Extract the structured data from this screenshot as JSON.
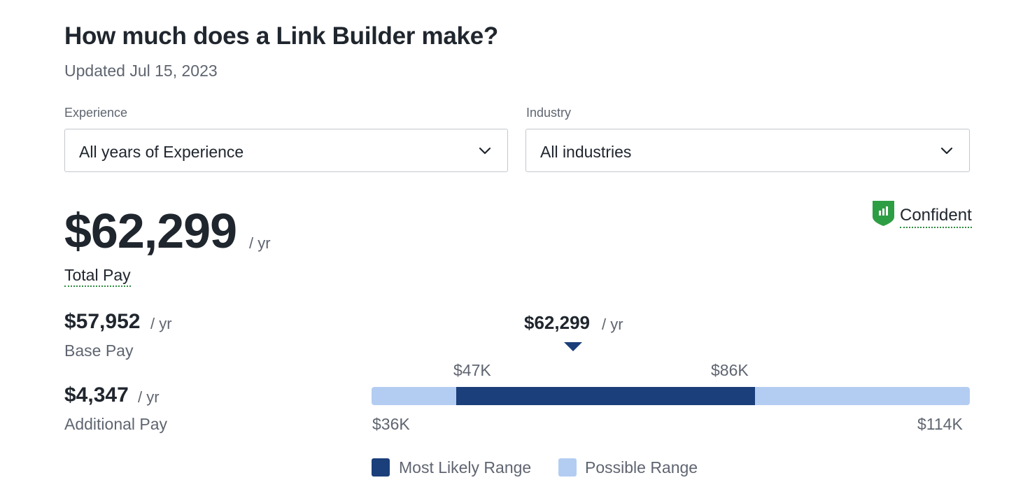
{
  "header": {
    "title": "How much does a Link Builder make?",
    "updated": "Updated Jul 15, 2023"
  },
  "filters": {
    "experience": {
      "label": "Experience",
      "value": "All years of Experience"
    },
    "industry": {
      "label": "Industry",
      "value": "All industries"
    }
  },
  "total_pay": {
    "value": "$62,299",
    "unit": "/ yr",
    "label": "Total Pay"
  },
  "confidence": {
    "label": "Confident",
    "icon": "shield-bar-chart-icon",
    "color": "#2e9e44"
  },
  "base_pay": {
    "value": "$57,952",
    "unit": "/ yr",
    "label": "Base Pay"
  },
  "additional_pay": {
    "value": "$4,347",
    "unit": "/ yr",
    "label": "Additional Pay"
  },
  "range_chart": {
    "marker_value": "$62,299",
    "marker_unit": "/ yr",
    "likely_low_label": "$47K",
    "likely_high_label": "$86K",
    "min_label": "$36K",
    "max_label": "$114K",
    "min": 36000,
    "max": 114000,
    "likely_low": 47000,
    "likely_high": 86000,
    "median": 62299,
    "likely_color": "#1b3f7a",
    "possible_color": "#b3cdf2"
  },
  "legend": {
    "likely": "Most Likely Range",
    "possible": "Possible Range"
  }
}
